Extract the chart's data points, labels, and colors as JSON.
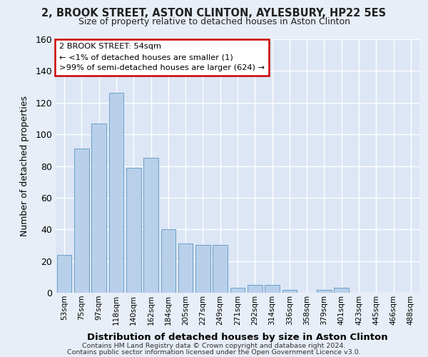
{
  "title1": "2, BROOK STREET, ASTON CLINTON, AYLESBURY, HP22 5ES",
  "title2": "Size of property relative to detached houses in Aston Clinton",
  "xlabel": "Distribution of detached houses by size in Aston Clinton",
  "ylabel": "Number of detached properties",
  "categories": [
    "53sqm",
    "75sqm",
    "97sqm",
    "118sqm",
    "140sqm",
    "162sqm",
    "184sqm",
    "205sqm",
    "227sqm",
    "249sqm",
    "271sqm",
    "292sqm",
    "314sqm",
    "336sqm",
    "358sqm",
    "379sqm",
    "401sqm",
    "423sqm",
    "445sqm",
    "466sqm",
    "488sqm"
  ],
  "values": [
    24,
    91,
    107,
    126,
    79,
    85,
    40,
    31,
    30,
    30,
    3,
    5,
    5,
    2,
    0,
    2,
    3,
    0,
    0,
    0,
    0
  ],
  "bar_color": "#b8d0ea",
  "bar_edge_color": "#6ca0c8",
  "bg_color": "#e8eef7",
  "plot_bg_color": "#dce6f5",
  "grid_color": "#ffffff",
  "annotation_text": "2 BROOK STREET: 54sqm\n← <1% of detached houses are smaller (1)\n>99% of semi-detached houses are larger (624) →",
  "annotation_box_edge": "#cc0000",
  "ylim": [
    0,
    160
  ],
  "yticks": [
    0,
    20,
    40,
    60,
    80,
    100,
    120,
    140,
    160
  ],
  "footer1": "Contains HM Land Registry data © Crown copyright and database right 2024.",
  "footer2": "Contains public sector information licensed under the Open Government Licence v3.0."
}
